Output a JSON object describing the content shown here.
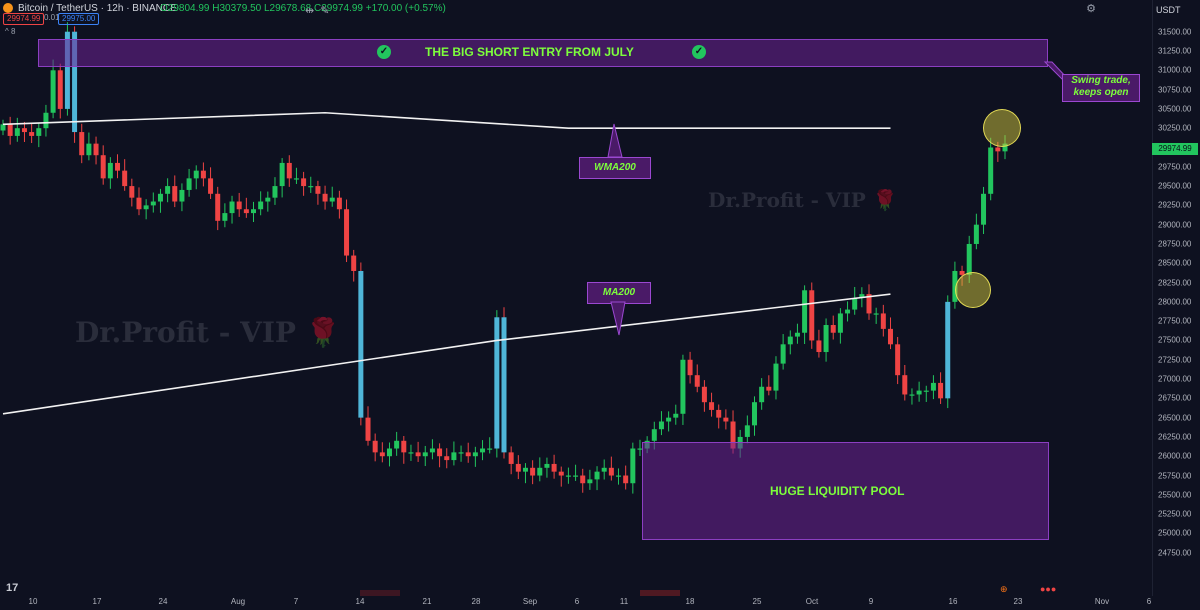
{
  "header": {
    "title": "Bitcoin / TetherUS · 12h · BINANCE",
    "ohlc": "O29804.99 H30379.50 L29678.68 C29974.99 +170.00 (+0.57%)",
    "bid": "29974.99",
    "spread": "0.01",
    "ask": "29975.00",
    "collapse": "^ 8",
    "currency": "USDT",
    "up_color": "#22c55e",
    "down_color": "#ef4444"
  },
  "annotations": {
    "top_zone_label": "THE BIG SHORT ENTRY FROM JULY",
    "swing_note_line1": "Swing trade,",
    "swing_note_line2": "keeps open",
    "wma_label": "WMA200",
    "ma_label": "MA200",
    "bottom_zone_label": "HUGE LIQUIDITY POOL",
    "watermark": "Dr.Profit - VIP",
    "watermark_small": "Dr.Profit - VIP",
    "zone_color": "#6e2396",
    "label_color": "#7dff3c"
  },
  "logo": "17",
  "chart_data": {
    "type": "candlestick",
    "title": "Bitcoin / TetherUS · 12h · BINANCE",
    "ylim": [
      24500,
      31600
    ],
    "y_ticks": [
      24750,
      25000,
      25250,
      25500,
      25750,
      26000,
      26250,
      26500,
      26750,
      27000,
      27250,
      27500,
      27750,
      28000,
      28250,
      28500,
      28750,
      29000,
      29250,
      29500,
      29750,
      30000,
      30250,
      30500,
      30750,
      31000,
      31250,
      31500
    ],
    "last_price": 29974.99,
    "x_ticks": [
      "10",
      "17",
      "24",
      "Aug",
      "7",
      "14",
      "21",
      "28",
      "Sep",
      "6",
      "11",
      "18",
      "25",
      "Oct",
      "9",
      "16",
      "23",
      "Nov",
      "6"
    ],
    "close_path": [
      30300,
      30150,
      30250,
      30200,
      30150,
      30250,
      30450,
      31000,
      30500,
      31500,
      30200,
      29900,
      30050,
      29900,
      29600,
      29800,
      29700,
      29500,
      29350,
      29200,
      29250,
      29300,
      29400,
      29500,
      29300,
      29450,
      29600,
      29700,
      29600,
      29400,
      29050,
      29150,
      29300,
      29200,
      29150,
      29200,
      29300,
      29350,
      29500,
      29800,
      29600,
      29600,
      29500,
      29500,
      29400,
      29300,
      29350,
      29200,
      28600,
      28400,
      26500,
      26200,
      26050,
      26000,
      26100,
      26200,
      26050,
      26050,
      26000,
      26050,
      26100,
      26000,
      25950,
      26050,
      26050,
      26000,
      26050,
      26100,
      26100,
      27800,
      26050,
      25900,
      25800,
      25850,
      25750,
      25850,
      25900,
      25800,
      25750,
      25750,
      25750,
      25650,
      25700,
      25800,
      25850,
      25750,
      25750,
      25650,
      26100,
      26100,
      26200,
      26350,
      26450,
      26500,
      26550,
      27250,
      27050,
      26900,
      26700,
      26600,
      26500,
      26450,
      26100,
      26250,
      26400,
      26700,
      26900,
      26850,
      27200,
      27450,
      27550,
      27600,
      28150,
      27500,
      27350,
      27700,
      27600,
      27850,
      27900,
      28050,
      28100,
      27850,
      27850,
      27650,
      27450,
      27050,
      26800,
      26800,
      26850,
      26850,
      26950,
      26750,
      28000,
      28400,
      28350,
      28750,
      29000,
      29400,
      30000,
      29950,
      30050
    ],
    "series": [
      {
        "name": "WMA200",
        "points": [
          [
            0,
            30300
          ],
          [
            45,
            30450
          ],
          [
            79,
            30250
          ],
          [
            124,
            30250
          ]
        ]
      },
      {
        "name": "MA200",
        "points": [
          [
            0,
            26550
          ],
          [
            69,
            27500
          ],
          [
            124,
            28100
          ]
        ]
      }
    ],
    "zones": [
      {
        "label": "THE BIG SHORT ENTRY FROM JULY",
        "y_range": [
          30950,
          31250
        ]
      },
      {
        "label": "HUGE LIQUIDITY POOL",
        "y_range": [
          25150,
          26350
        ]
      }
    ]
  }
}
